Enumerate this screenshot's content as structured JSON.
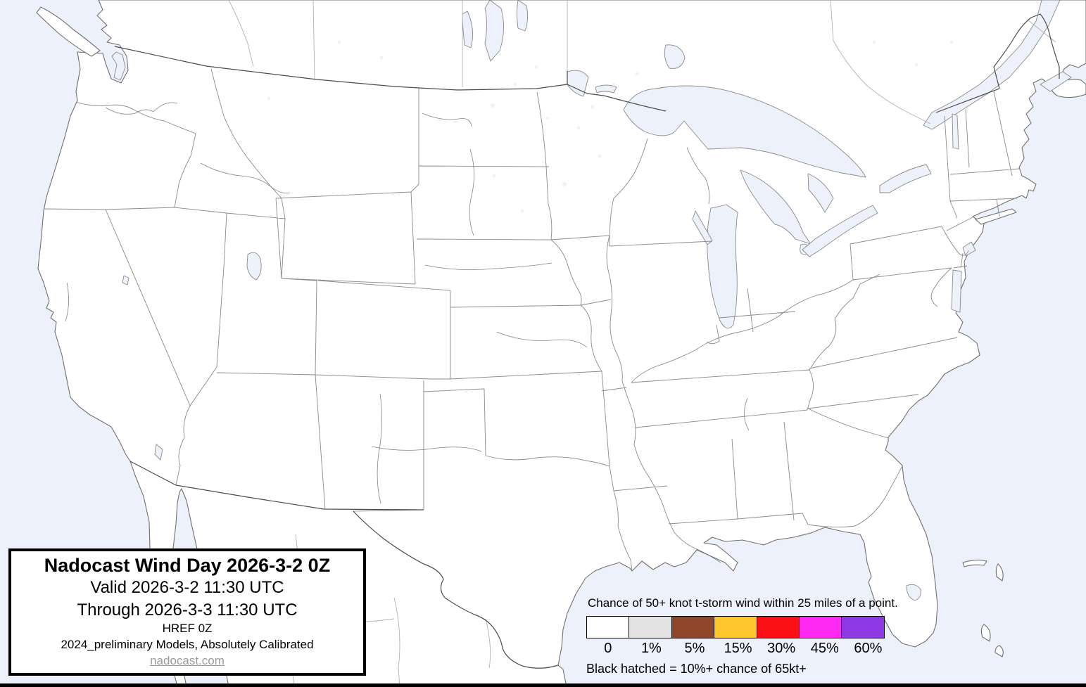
{
  "map": {
    "water_color": "#edf1fb",
    "land_color": "#ffffff",
    "state_border_color": "#8a8a8a",
    "country_border_color": "#4b4b4b",
    "region": "Continental United States with southern Canada and northern Mexico"
  },
  "title_box": {
    "title": "Nadocast Wind Day 2026-3-2 0Z",
    "valid": "Valid 2026-3-2 11:30 UTC",
    "through": "Through 2026-3-3 11:30 UTC",
    "model_run": "HREF 0Z",
    "models_note": "2024_preliminary Models, Absolutely Calibrated",
    "website": "nadocast.com"
  },
  "legend": {
    "title": "Chance of 50+ knot t-storm wind within 25 miles of a point.",
    "note": "Black hatched = 10%+ chance of 65kt+",
    "classes": [
      {
        "label": "0",
        "color": "#ffffff"
      },
      {
        "label": "1%",
        "color": "#e3e3e3"
      },
      {
        "label": "5%",
        "color": "#8e4829"
      },
      {
        "label": "15%",
        "color": "#fec72e"
      },
      {
        "label": "30%",
        "color": "#fb1015"
      },
      {
        "label": "45%",
        "color": "#fe2af2"
      },
      {
        "label": "60%",
        "color": "#8d3ae4"
      }
    ]
  }
}
